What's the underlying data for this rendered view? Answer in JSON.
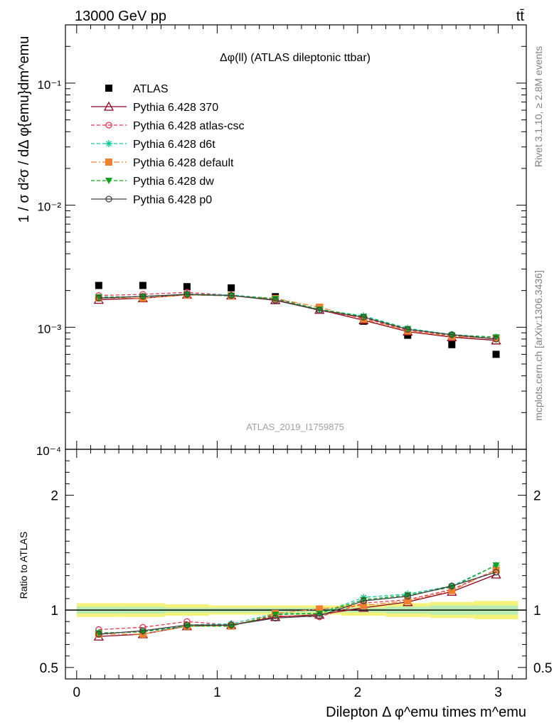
{
  "header": {
    "left": "13000 GeV pp",
    "right": "tt̄"
  },
  "side_labels": {
    "rivet": "Rivet 3.1.10, ≥ 2.8M events",
    "mcplots": "mcplots.cern.ch [arXiv:1306.3436]"
  },
  "chart_data": [
    {
      "type": "scatter",
      "title": "Δφ(ll) (ATLAS dileptonic ttbar)",
      "watermark": "ATLAS_2019_I1759875",
      "ylabel": "1 / σ  d²σ / dΔ φ{emu}dm^emu",
      "yscale": "log",
      "ylim": [
        0.0001,
        0.3
      ],
      "xlim": [
        -0.08,
        3.2
      ],
      "y_tick_labels": [
        "10⁻⁴",
        "10⁻³",
        "10⁻²",
        "10⁻¹"
      ],
      "x": [
        0.157,
        0.471,
        0.785,
        1.1,
        1.414,
        1.728,
        2.042,
        2.356,
        2.67,
        2.985
      ],
      "series": [
        {
          "name": "ATLAS",
          "color": "#000000",
          "marker": "square-filled",
          "line": "none",
          "values": [
            0.0022,
            0.0022,
            0.00215,
            0.0021,
            0.00178,
            0.00145,
            0.00112,
            0.00086,
            0.00072,
            0.0006
          ]
        },
        {
          "name": "Pythia 6.428 370",
          "color": "#8b0020",
          "marker": "triangle-open",
          "line": "solid",
          "values": [
            0.00168,
            0.00173,
            0.00185,
            0.00182,
            0.00167,
            0.00139,
            0.00114,
            0.00092,
            0.00083,
            0.00078
          ]
        },
        {
          "name": "Pythia 6.428 atlas-csc",
          "color": "#e8334a",
          "marker": "circle-open",
          "line": "dashed",
          "values": [
            0.00182,
            0.00186,
            0.00193,
            0.00183,
            0.00169,
            0.00137,
            0.00119,
            0.00094,
            0.00085,
            0.00081
          ]
        },
        {
          "name": "Pythia 6.428 d6t",
          "color": "#18c8a0",
          "marker": "star",
          "line": "dashed",
          "values": [
            0.00177,
            0.00178,
            0.00187,
            0.00184,
            0.00172,
            0.0014,
            0.00124,
            0.00098,
            0.00087,
            0.00083
          ]
        },
        {
          "name": "Pythia 6.428 default",
          "color": "#f08030",
          "marker": "square-filled",
          "line": "dashdot",
          "values": [
            0.00174,
            0.00173,
            0.00184,
            0.00181,
            0.00172,
            0.00146,
            0.00116,
            0.00093,
            0.00084,
            0.00081
          ]
        },
        {
          "name": "Pythia 6.428 dw",
          "color": "#10a020",
          "marker": "triangle-down-filled",
          "line": "dashed",
          "values": [
            0.00176,
            0.00178,
            0.00185,
            0.00181,
            0.00171,
            0.0014,
            0.00122,
            0.00097,
            0.00086,
            0.00083
          ]
        },
        {
          "name": "Pythia 6.428 p0",
          "color": "#404040",
          "marker": "circle-open",
          "line": "solid",
          "values": [
            0.00173,
            0.00179,
            0.00186,
            0.00182,
            0.00166,
            0.00138,
            0.00121,
            0.00096,
            0.00087,
            0.0008
          ]
        }
      ]
    },
    {
      "type": "scatter",
      "ylabel": "Ratio to ATLAS",
      "xlabel": "Dilepton Δ φ^emu times m^emu",
      "ylim": [
        0.4,
        2.4
      ],
      "y_ticks": [
        0.5,
        1,
        2
      ],
      "x_ticks": [
        0,
        1,
        2,
        3
      ],
      "x": [
        0.157,
        0.471,
        0.785,
        1.1,
        1.414,
        1.728,
        2.042,
        2.356,
        2.67,
        2.985
      ],
      "band_inner": [
        0.03,
        0.03,
        0.02,
        0.02,
        0.02,
        0.02,
        0.02,
        0.03,
        0.04,
        0.04
      ],
      "band_outer": [
        0.06,
        0.06,
        0.05,
        0.04,
        0.04,
        0.04,
        0.05,
        0.06,
        0.07,
        0.08
      ],
      "series": [
        {
          "name": "Pythia 6.428 370",
          "values": [
            0.77,
            0.79,
            0.86,
            0.87,
            0.94,
            0.96,
            1.02,
            1.07,
            1.16,
            1.31
          ]
        },
        {
          "name": "Pythia 6.428 atlas-csc",
          "values": [
            0.83,
            0.85,
            0.9,
            0.87,
            0.95,
            0.94,
            1.06,
            1.09,
            1.18,
            1.35
          ]
        },
        {
          "name": "Pythia 6.428 d6t",
          "values": [
            0.8,
            0.81,
            0.87,
            0.88,
            0.97,
            0.97,
            1.11,
            1.14,
            1.21,
            1.39
          ]
        },
        {
          "name": "Pythia 6.428 default",
          "values": [
            0.79,
            0.79,
            0.86,
            0.86,
            0.97,
            1.01,
            1.04,
            1.08,
            1.17,
            1.35
          ]
        },
        {
          "name": "Pythia 6.428 dw",
          "values": [
            0.8,
            0.81,
            0.86,
            0.86,
            0.96,
            0.97,
            1.09,
            1.13,
            1.2,
            1.39
          ]
        },
        {
          "name": "Pythia 6.428 p0",
          "values": [
            0.79,
            0.82,
            0.87,
            0.87,
            0.93,
            0.95,
            1.08,
            1.12,
            1.21,
            1.33
          ]
        }
      ]
    }
  ]
}
